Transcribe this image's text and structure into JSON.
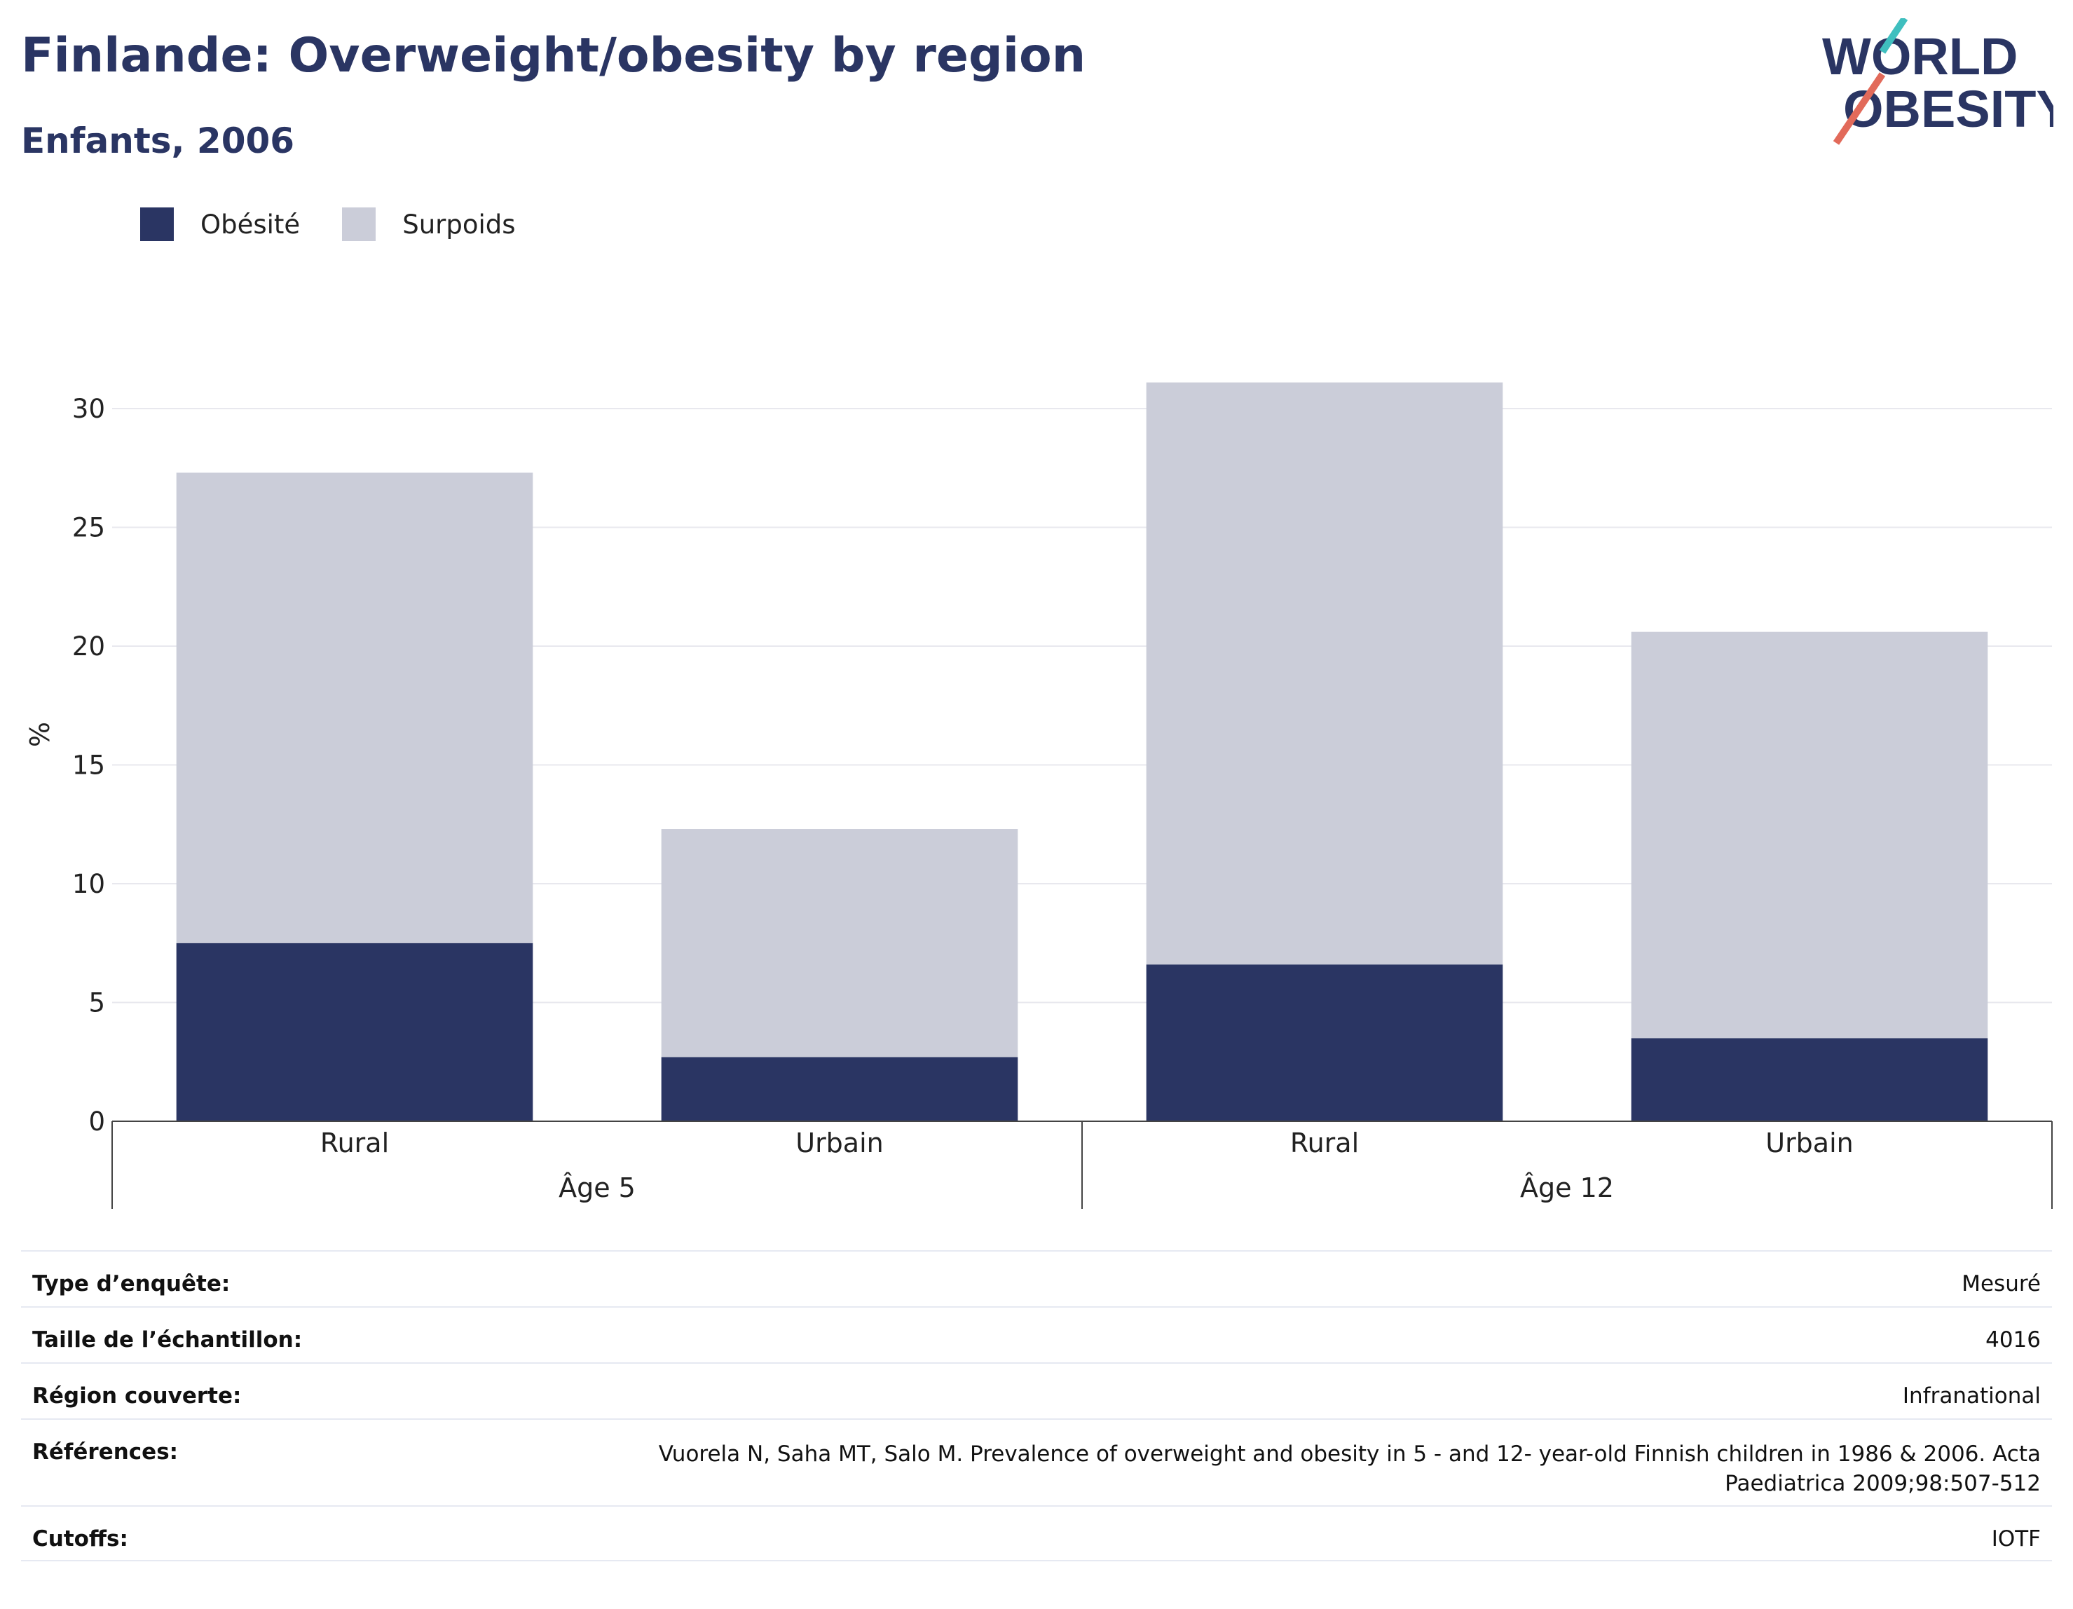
{
  "header": {
    "title": "Finlande: Overweight/obesity by region",
    "subtitle": "Enfants, 2006"
  },
  "logo": {
    "line1": "WORLD",
    "line2": "OBESITY"
  },
  "legend": [
    {
      "label": "Obésité",
      "color": "#2a3563"
    },
    {
      "label": "Surpoids",
      "color": "#cbcdd9"
    }
  ],
  "chart_data": {
    "type": "bar",
    "stacked": true,
    "ylabel": "%",
    "ylim": [
      0,
      32
    ],
    "yticks": [
      0,
      5,
      10,
      15,
      20,
      25,
      30
    ],
    "grid": true,
    "legend_position": "top-left",
    "groups": [
      {
        "label": "Âge 5",
        "categories": [
          "Rural",
          "Urbain"
        ]
      },
      {
        "label": "Âge 12",
        "categories": [
          "Rural",
          "Urbain"
        ]
      }
    ],
    "series": [
      {
        "name": "Obésité",
        "color": "#2a3563",
        "values": [
          7.5,
          2.7,
          6.6,
          3.5
        ]
      },
      {
        "name": "Surpoids",
        "color": "#cbcdd9",
        "values": [
          19.8,
          9.6,
          24.5,
          17.1
        ]
      }
    ]
  },
  "metadata": [
    {
      "label": "Type d’enquête:",
      "value": "Mesuré"
    },
    {
      "label": "Taille de l’échantillon:",
      "value": "4016"
    },
    {
      "label": "Région couverte:",
      "value": "Infranational"
    },
    {
      "label": "Références:",
      "value": "Vuorela N, Saha MT, Salo M. Prevalence of overweight and obesity in 5 - and 12- year-old Finnish children in 1986 & 2006. Acta Paediatrica 2009;98:507-512"
    },
    {
      "label": "Cutoffs:",
      "value": "IOTF"
    }
  ]
}
